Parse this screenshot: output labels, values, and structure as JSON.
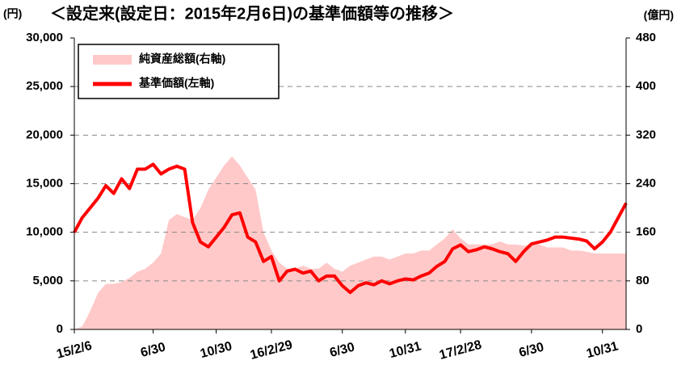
{
  "chart_data": {
    "type": "line_area",
    "title": "＜設定来(設定日：2015年2月6日)の基準価額等の推移＞",
    "y_unit": "(円)",
    "y2_unit": "(億円)",
    "categories": [
      "15/2/6",
      null,
      null,
      null,
      null,
      null,
      null,
      null,
      null,
      null,
      "6/30",
      null,
      null,
      null,
      null,
      null,
      null,
      null,
      "10/30",
      null,
      null,
      null,
      null,
      null,
      null,
      "16/2/29",
      null,
      null,
      null,
      null,
      null,
      null,
      null,
      null,
      "6/30",
      null,
      null,
      null,
      null,
      null,
      null,
      null,
      "10/31",
      null,
      null,
      null,
      null,
      null,
      null,
      "17/2/28",
      null,
      null,
      null,
      null,
      null,
      null,
      null,
      null,
      "6/30",
      null,
      null,
      null,
      null,
      null,
      null,
      null,
      null,
      "10/31",
      null,
      null,
      null
    ],
    "series": [
      {
        "name": "純資産総額(右軸)",
        "type": "area",
        "axis": "y2",
        "color": "#ffc9c9",
        "values": [
          0,
          5,
          30,
          60,
          75,
          75,
          78,
          85,
          95,
          100,
          110,
          125,
          180,
          190,
          185,
          180,
          200,
          230,
          250,
          270,
          285,
          270,
          250,
          230,
          160,
          130,
          110,
          100,
          100,
          105,
          100,
          100,
          110,
          100,
          95,
          105,
          110,
          115,
          120,
          120,
          115,
          120,
          125,
          125,
          130,
          130,
          140,
          150,
          165,
          150,
          140,
          140,
          140,
          140,
          145,
          140,
          140,
          138,
          140,
          140,
          135,
          135,
          135,
          130,
          130,
          128,
          125,
          125,
          125,
          125,
          125
        ]
      },
      {
        "name": "基準価額(左軸)",
        "type": "line",
        "color": "#ff0000",
        "values": [
          10000,
          11500,
          12500,
          13500,
          14800,
          14000,
          15500,
          14500,
          16500,
          16500,
          17000,
          16000,
          16500,
          16800,
          16500,
          11000,
          9000,
          8500,
          9500,
          10500,
          11800,
          12000,
          9500,
          9000,
          7000,
          7500,
          5000,
          6000,
          6200,
          5800,
          6000,
          5000,
          5500,
          5500,
          4500,
          3800,
          4500,
          4800,
          4600,
          5000,
          4700,
          5000,
          5200,
          5100,
          5500,
          5800,
          6500,
          7000,
          8300,
          8700,
          8000,
          8200,
          8500,
          8300,
          8000,
          7800,
          7000,
          8000,
          8800,
          9000,
          9200,
          9500,
          9500,
          9400,
          9300,
          9100,
          8300,
          9000,
          10000,
          11500,
          13000
        ]
      }
    ],
    "ylim": [
      0,
      30000
    ],
    "yticks": [
      0,
      {
        "value": 5000,
        "label": "5,000"
      },
      {
        "value": 10000,
        "label": "10,000"
      },
      {
        "value": 15000,
        "label": "15,000"
      },
      {
        "value": 20000,
        "label": "20,000"
      },
      {
        "value": 25000,
        "label": "25,000"
      },
      {
        "value": 30000,
        "label": "30,000"
      }
    ],
    "y2lim": [
      0,
      480
    ],
    "y2ticks": [
      0,
      80,
      160,
      240,
      320,
      400,
      480
    ],
    "grid": true
  }
}
